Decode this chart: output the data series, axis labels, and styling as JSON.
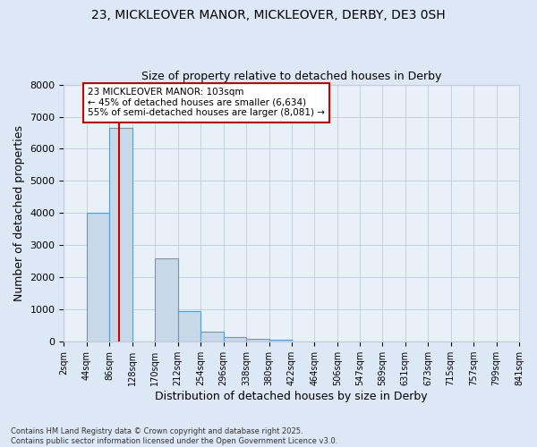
{
  "title1": "23, MICKLEOVER MANOR, MICKLEOVER, DERBY, DE3 0SH",
  "title2": "Size of property relative to detached houses in Derby",
  "xlabel": "Distribution of detached houses by size in Derby",
  "ylabel": "Number of detached properties",
  "bin_edges": [
    2,
    44,
    86,
    128,
    170,
    212,
    254,
    296,
    338,
    380,
    422,
    464,
    506,
    547,
    589,
    631,
    673,
    715,
    757,
    799,
    841
  ],
  "bar_heights": [
    0,
    4000,
    6640,
    0,
    2600,
    950,
    300,
    150,
    100,
    50,
    0,
    0,
    0,
    0,
    0,
    0,
    0,
    0,
    0,
    0
  ],
  "bar_color": "#c8d8e8",
  "bar_edge_color": "#5b9bd5",
  "red_line_x": 103,
  "annotation_text": "23 MICKLEOVER MANOR: 103sqm\n← 45% of detached houses are smaller (6,634)\n55% of semi-detached houses are larger (8,081) →",
  "annotation_box_color": "#ffffff",
  "annotation_box_edge": "#cc0000",
  "annotation_text_color": "#000000",
  "red_line_color": "#cc0000",
  "grid_color": "#c0ccda",
  "background_color": "#dce8f5",
  "plot_bg_color": "#e8f0f8",
  "ylim": [
    0,
    8000
  ],
  "yticks": [
    0,
    1000,
    2000,
    3000,
    4000,
    5000,
    6000,
    7000,
    8000
  ],
  "tick_labels": [
    "2sqm",
    "44sqm",
    "86sqm",
    "128sqm",
    "170sqm",
    "212sqm",
    "254sqm",
    "296sqm",
    "338sqm",
    "380sqm",
    "422sqm",
    "464sqm",
    "506sqm",
    "547sqm",
    "589sqm",
    "631sqm",
    "673sqm",
    "715sqm",
    "757sqm",
    "799sqm",
    "841sqm"
  ],
  "footer1": "Contains HM Land Registry data © Crown copyright and database right 2025.",
  "footer2": "Contains public sector information licensed under the Open Government Licence v3.0.",
  "figsize": [
    6.0,
    5.0
  ],
  "dpi": 100
}
